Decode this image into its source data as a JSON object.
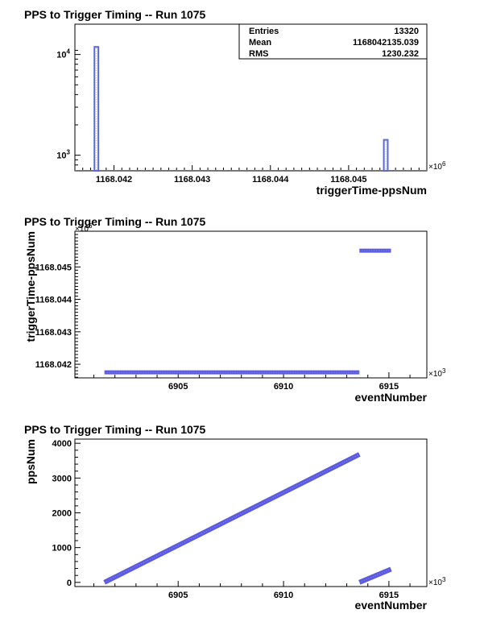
{
  "chart_data": [
    {
      "type": "histogram",
      "title": "PPS to Trigger Timing -- Run 1075",
      "xlabel": "triggerTime-ppsNum",
      "x_multiplier": "×10",
      "x_multiplier_exp": "6",
      "x_ticks": [
        "1168.042",
        "1168.043",
        "1168.044",
        "1168.045"
      ],
      "xlim": [
        1168.0415,
        1168.046
      ],
      "y_scale": "log",
      "y_ticks": [
        {
          "base": "10",
          "exp": "3",
          "value": 1000
        },
        {
          "base": "10",
          "exp": "4",
          "value": 10000
        }
      ],
      "ylim": [
        700,
        20000
      ],
      "bins": [
        {
          "x_low": 1168.04175,
          "x_high": 1168.0418,
          "count": 11900
        },
        {
          "x_low": 1168.04545,
          "x_high": 1168.0455,
          "count": 1420
        }
      ],
      "stats": [
        {
          "label": "Entries",
          "value": "13320"
        },
        {
          "label": "Mean",
          "value": "1168042135.039"
        },
        {
          "label": "RMS",
          "value": "1230.232"
        }
      ],
      "color": "#5b6ad6"
    },
    {
      "type": "scatter",
      "title": "PPS to Trigger Timing -- Run 1075",
      "xlabel": "eventNumber",
      "ylabel": "triggerTime-ppsNum",
      "x_multiplier": "×10",
      "x_multiplier_exp": "3",
      "y_multiplier": "×10",
      "y_multiplier_exp": "6",
      "x_ticks": [
        "6905",
        "6910",
        "6915"
      ],
      "y_ticks": [
        "1168.042",
        "1168.043",
        "1168.044",
        "1168.045"
      ],
      "xlim": [
        6900.1,
        6916.8
      ],
      "ylim": [
        1168.04158,
        1168.0461
      ],
      "segments": [
        {
          "x": [
            6901.5,
            6913.6
          ],
          "y": [
            1168.04175,
            1168.04175
          ]
        },
        {
          "x": [
            6913.6,
            6915.1
          ],
          "y": [
            1168.0455,
            1168.0455
          ]
        }
      ],
      "color": "#5b5be0"
    },
    {
      "type": "scatter",
      "title": "PPS to Trigger Timing -- Run 1075",
      "xlabel": "eventNumber",
      "ylabel": "ppsNum",
      "x_multiplier": "×10",
      "x_multiplier_exp": "3",
      "x_ticks": [
        "6905",
        "6910",
        "6915"
      ],
      "y_ticks": [
        "0",
        "1000",
        "2000",
        "3000",
        "4000"
      ],
      "xlim": [
        6900.1,
        6916.8
      ],
      "ylim": [
        -120,
        4120
      ],
      "segments": [
        {
          "x": [
            6901.5,
            6913.6
          ],
          "y": [
            0,
            3680
          ]
        },
        {
          "x": [
            6913.6,
            6915.1
          ],
          "y": [
            0,
            380
          ]
        }
      ],
      "color": "#5b5be0"
    }
  ]
}
